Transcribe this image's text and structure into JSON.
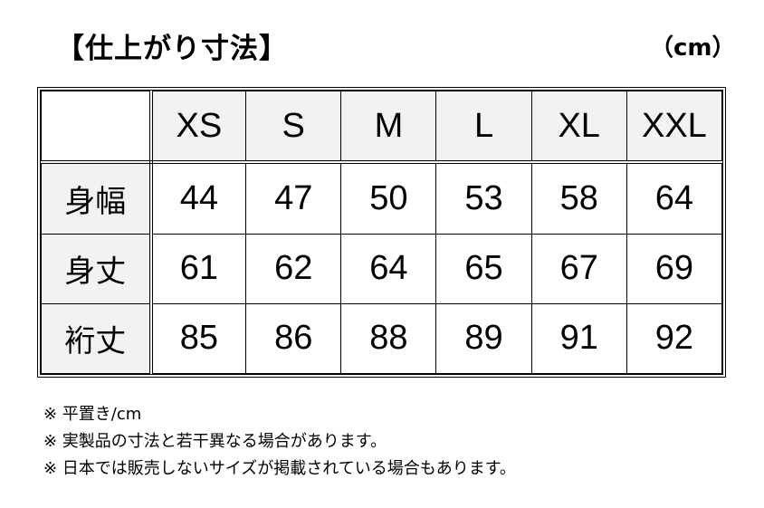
{
  "title": "【仕上がり寸法】",
  "unit": "（cm）",
  "table": {
    "sizes": [
      "XS",
      "S",
      "M",
      "L",
      "XL",
      "XXL"
    ],
    "rows": [
      {
        "label": "身幅",
        "values": [
          "44",
          "47",
          "50",
          "53",
          "58",
          "64"
        ]
      },
      {
        "label": "身丈",
        "values": [
          "61",
          "62",
          "64",
          "65",
          "67",
          "69"
        ]
      },
      {
        "label": "裄丈",
        "values": [
          "85",
          "86",
          "88",
          "89",
          "91",
          "92"
        ]
      }
    ]
  },
  "notes": [
    "※ 平置き/cm",
    "※ 実製品の寸法と若干異なる場合があります。",
    "※ 日本では販売しないサイズが掲載されている場合もあります。"
  ],
  "colors": {
    "header_bg": "#f2f2f2",
    "border": "#000000"
  }
}
